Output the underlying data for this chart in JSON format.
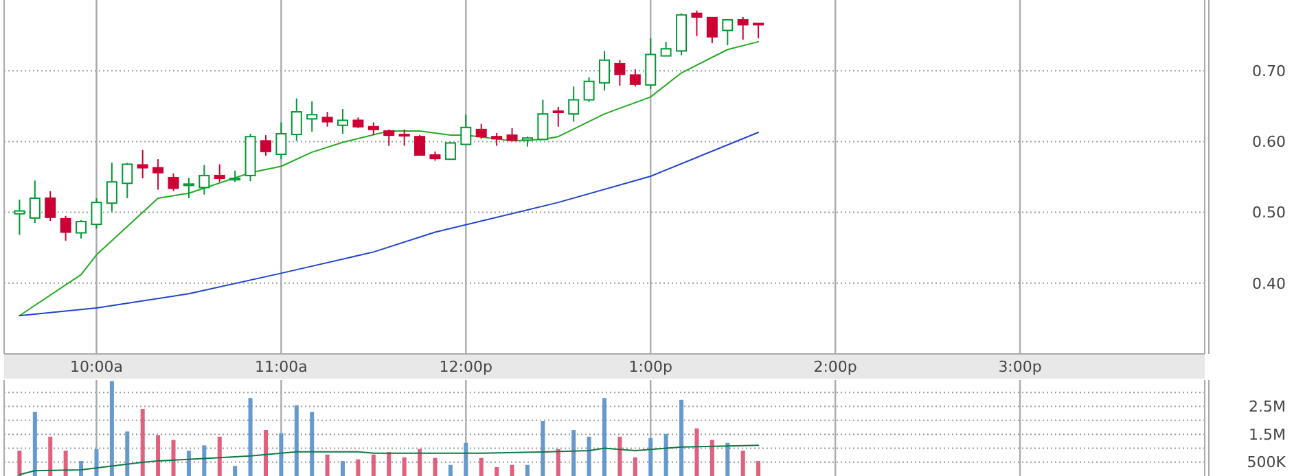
{
  "chart_data": [
    {
      "type": "candlestick",
      "xlim": [
        9.5,
        16
      ],
      "ylim": [
        0.3,
        0.8
      ],
      "xticks": [
        {
          "value": 10,
          "label": "10:00a"
        },
        {
          "value": 11,
          "label": "11:00a"
        },
        {
          "value": 12,
          "label": "12:00p"
        },
        {
          "value": 13,
          "label": "1:00p"
        },
        {
          "value": 14,
          "label": "2:00p"
        },
        {
          "value": 15,
          "label": "3:00p"
        }
      ],
      "yticks": [
        {
          "value": 0.4,
          "label": "0.40"
        },
        {
          "value": 0.5,
          "label": "0.50"
        },
        {
          "value": 0.6,
          "label": "0.60"
        },
        {
          "value": 0.7,
          "label": "0.70"
        }
      ],
      "grid": true,
      "x": [
        9.5833,
        9.6667,
        9.75,
        9.8333,
        9.9167,
        10,
        10.0833,
        10.1667,
        10.25,
        10.3333,
        10.4167,
        10.5,
        10.5833,
        10.6667,
        10.75,
        10.8333,
        10.9167,
        11,
        11.0833,
        11.1667,
        11.25,
        11.3333,
        11.4167,
        11.5,
        11.5833,
        11.6667,
        11.75,
        11.8333,
        11.9167,
        12,
        12.0833,
        12.1667,
        12.25,
        12.3333,
        12.4167,
        12.5,
        12.5833,
        12.6667,
        12.75,
        12.8333,
        12.9167,
        13,
        13.0833,
        13.1667,
        13.25,
        13.3333,
        13.4167,
        13.5,
        13.5833
      ],
      "ohlc": [
        [
          0.498,
          0.518,
          0.468,
          0.502
        ],
        [
          0.492,
          0.545,
          0.485,
          0.52
        ],
        [
          0.52,
          0.53,
          0.488,
          0.493
        ],
        [
          0.491,
          0.495,
          0.46,
          0.472
        ],
        [
          0.471,
          0.489,
          0.463,
          0.487
        ],
        [
          0.483,
          0.52,
          0.477,
          0.514
        ],
        [
          0.513,
          0.57,
          0.501,
          0.543
        ],
        [
          0.541,
          0.57,
          0.52,
          0.568
        ],
        [
          0.567,
          0.588,
          0.548,
          0.563
        ],
        [
          0.563,
          0.575,
          0.532,
          0.556
        ],
        [
          0.549,
          0.555,
          0.53,
          0.534
        ],
        [
          0.538,
          0.549,
          0.52,
          0.54
        ],
        [
          0.535,
          0.567,
          0.525,
          0.552
        ],
        [
          0.552,
          0.568,
          0.543,
          0.548
        ],
        [
          0.546,
          0.559,
          0.543,
          0.548
        ],
        [
          0.552,
          0.611,
          0.544,
          0.607
        ],
        [
          0.601,
          0.609,
          0.58,
          0.586
        ],
        [
          0.582,
          0.627,
          0.575,
          0.611
        ],
        [
          0.61,
          0.661,
          0.601,
          0.642
        ],
        [
          0.632,
          0.657,
          0.614,
          0.638
        ],
        [
          0.634,
          0.642,
          0.621,
          0.628
        ],
        [
          0.623,
          0.646,
          0.611,
          0.63
        ],
        [
          0.63,
          0.634,
          0.619,
          0.621
        ],
        [
          0.621,
          0.627,
          0.609,
          0.617
        ],
        [
          0.615,
          0.617,
          0.594,
          0.609
        ],
        [
          0.61,
          0.617,
          0.594,
          0.609
        ],
        [
          0.607,
          0.609,
          0.58,
          0.581
        ],
        [
          0.581,
          0.586,
          0.573,
          0.576
        ],
        [
          0.575,
          0.599,
          0.575,
          0.598
        ],
        [
          0.596,
          0.638,
          0.596,
          0.62
        ],
        [
          0.617,
          0.625,
          0.604,
          0.607
        ],
        [
          0.607,
          0.612,
          0.594,
          0.604
        ],
        [
          0.609,
          0.619,
          0.601,
          0.602
        ],
        [
          0.602,
          0.607,
          0.593,
          0.605
        ],
        [
          0.603,
          0.659,
          0.603,
          0.639
        ],
        [
          0.643,
          0.649,
          0.621,
          0.642
        ],
        [
          0.639,
          0.678,
          0.628,
          0.659
        ],
        [
          0.659,
          0.691,
          0.656,
          0.685
        ],
        [
          0.683,
          0.728,
          0.672,
          0.715
        ],
        [
          0.71,
          0.715,
          0.679,
          0.695
        ],
        [
          0.694,
          0.702,
          0.678,
          0.681
        ],
        [
          0.68,
          0.746,
          0.674,
          0.723
        ],
        [
          0.721,
          0.741,
          0.721,
          0.731
        ],
        [
          0.728,
          0.781,
          0.722,
          0.779
        ],
        [
          0.781,
          0.785,
          0.749,
          0.776
        ],
        [
          0.775,
          0.775,
          0.739,
          0.748
        ],
        [
          0.757,
          0.772,
          0.736,
          0.772
        ],
        [
          0.772,
          0.776,
          0.744,
          0.765
        ],
        [
          0.767,
          0.768,
          0.746,
          0.765
        ]
      ],
      "colors": [
        "#009933",
        "#009933",
        "#cc0033",
        "#cc0033",
        "#009933",
        "#009933",
        "#009933",
        "#009933",
        "#cc0033",
        "#cc0033",
        "#cc0033",
        "#009933",
        "#009933",
        "#cc0033",
        "#009933",
        "#009933",
        "#cc0033",
        "#009933",
        "#009933",
        "#009933",
        "#cc0033",
        "#009933",
        "#cc0033",
        "#cc0033",
        "#cc0033",
        "#cc0033",
        "#cc0033",
        "#cc0033",
        "#009933",
        "#009933",
        "#cc0033",
        "#cc0033",
        "#cc0033",
        "#009933",
        "#009933",
        "#cc0033",
        "#009933",
        "#009933",
        "#009933",
        "#cc0033",
        "#cc0033",
        "#009933",
        "#009933",
        "#009933",
        "#cc0033",
        "#cc0033",
        "#009933",
        "#cc0033",
        "#cc0033"
      ],
      "series": [
        {
          "type": "line",
          "color": "#22aa22",
          "x": [
            9.5833,
            9.9167,
            10,
            10.3333,
            10.5,
            10.8333,
            11,
            11.1667,
            11.3333,
            11.5833,
            11.75,
            11.9167,
            12,
            12.25,
            12.4167,
            12.5,
            12.75,
            13,
            13.1667,
            13.4167,
            13.5833
          ],
          "values": [
            0.354,
            0.412,
            0.44,
            0.52,
            0.527,
            0.556,
            0.565,
            0.585,
            0.599,
            0.615,
            0.615,
            0.609,
            0.609,
            0.601,
            0.603,
            0.607,
            0.639,
            0.663,
            0.697,
            0.73,
            0.741
          ]
        },
        {
          "type": "line",
          "color": "#2244cc",
          "x": [
            9.5833,
            10,
            10.5,
            11,
            11.5,
            11.8333,
            12.5,
            13,
            13.5833
          ],
          "values": [
            0.354,
            0.365,
            0.385,
            0.414,
            0.444,
            0.472,
            0.514,
            0.551,
            0.613
          ]
        }
      ]
    },
    {
      "type": "bar",
      "xlim": [
        9.5,
        16
      ],
      "ylim": [
        0,
        3450000
      ],
      "tick_labels": "y",
      "grid": true,
      "xticks": [
        10,
        11,
        12,
        13,
        14,
        15
      ],
      "yticks": [
        {
          "value": 500000,
          "label": "500K"
        },
        {
          "value": 1000000,
          "label": null
        },
        {
          "value": 1500000,
          "label": "1.5M"
        },
        {
          "value": 2000000,
          "label": null
        },
        {
          "value": 2500000,
          "label": "2.5M"
        },
        {
          "value": 3000000,
          "label": null
        }
      ],
      "x": [
        9.5833,
        9.6667,
        9.75,
        9.8333,
        9.9167,
        10,
        10.0833,
        10.1667,
        10.25,
        10.3333,
        10.4167,
        10.5,
        10.5833,
        10.6667,
        10.75,
        10.8333,
        10.9167,
        11,
        11.0833,
        11.1667,
        11.25,
        11.3333,
        11.4167,
        11.5,
        11.5833,
        11.6667,
        11.75,
        11.8333,
        11.9167,
        12,
        12.0833,
        12.1667,
        12.25,
        12.3333,
        12.4167,
        12.5,
        12.5833,
        12.6667,
        12.75,
        12.8333,
        12.9167,
        13,
        13.0833,
        13.1667,
        13.25,
        13.3333,
        13.4167,
        13.5,
        13.5833
      ],
      "series": [
        {
          "values": [
            910000,
            2300000,
            1410000,
            910000,
            540000,
            970000,
            3410000,
            1600000,
            2410000,
            1470000,
            1300000,
            910000,
            1100000,
            1410000,
            360000,
            2800000,
            1650000,
            1540000,
            2540000,
            2300000,
            770000,
            540000,
            600000,
            770000,
            860000,
            670000,
            970000,
            650000,
            400000,
            1190000,
            650000,
            320000,
            400000,
            400000,
            1970000,
            970000,
            1650000,
            1410000,
            2800000,
            1410000,
            670000,
            1360000,
            1510000,
            2740000,
            1710000,
            1300000,
            1190000,
            910000,
            540000
          ],
          "colors": [
            "#e0607e",
            "#6699cc",
            "#e0607e",
            "#e0607e",
            "#6699cc",
            "#6699cc",
            "#6699cc",
            "#6699cc",
            "#e0607e",
            "#e0607e",
            "#e0607e",
            "#6699cc",
            "#6699cc",
            "#e0607e",
            "#6699cc",
            "#6699cc",
            "#e0607e",
            "#6699cc",
            "#6699cc",
            "#6699cc",
            "#e0607e",
            "#6699cc",
            "#e0607e",
            "#e0607e",
            "#e0607e",
            "#e0607e",
            "#e0607e",
            "#e0607e",
            "#6699cc",
            "#6699cc",
            "#e0607e",
            "#e0607e",
            "#e0607e",
            "#6699cc",
            "#6699cc",
            "#e0607e",
            "#6699cc",
            "#6699cc",
            "#6699cc",
            "#e0607e",
            "#e0607e",
            "#6699cc",
            "#6699cc",
            "#6699cc",
            "#e0607e",
            "#e0607e",
            "#6699cc",
            "#e0607e",
            "#e0607e"
          ]
        },
        {
          "type": "line",
          "color": "#117744",
          "x": [
            9.5833,
            9.6667,
            9.9167,
            10.0833,
            10.25,
            10.3333,
            10.5833,
            10.8333,
            11.0833,
            11.4167,
            11.5,
            12.0833,
            12.4167,
            12.6667,
            12.75,
            12.9167,
            13.1667,
            13.5833
          ],
          "values": [
            50000,
            190000,
            220000,
            360000,
            490000,
            540000,
            630000,
            720000,
            870000,
            870000,
            820000,
            820000,
            860000,
            910000,
            1000000,
            910000,
            1040000,
            1100000
          ]
        }
      ]
    }
  ]
}
